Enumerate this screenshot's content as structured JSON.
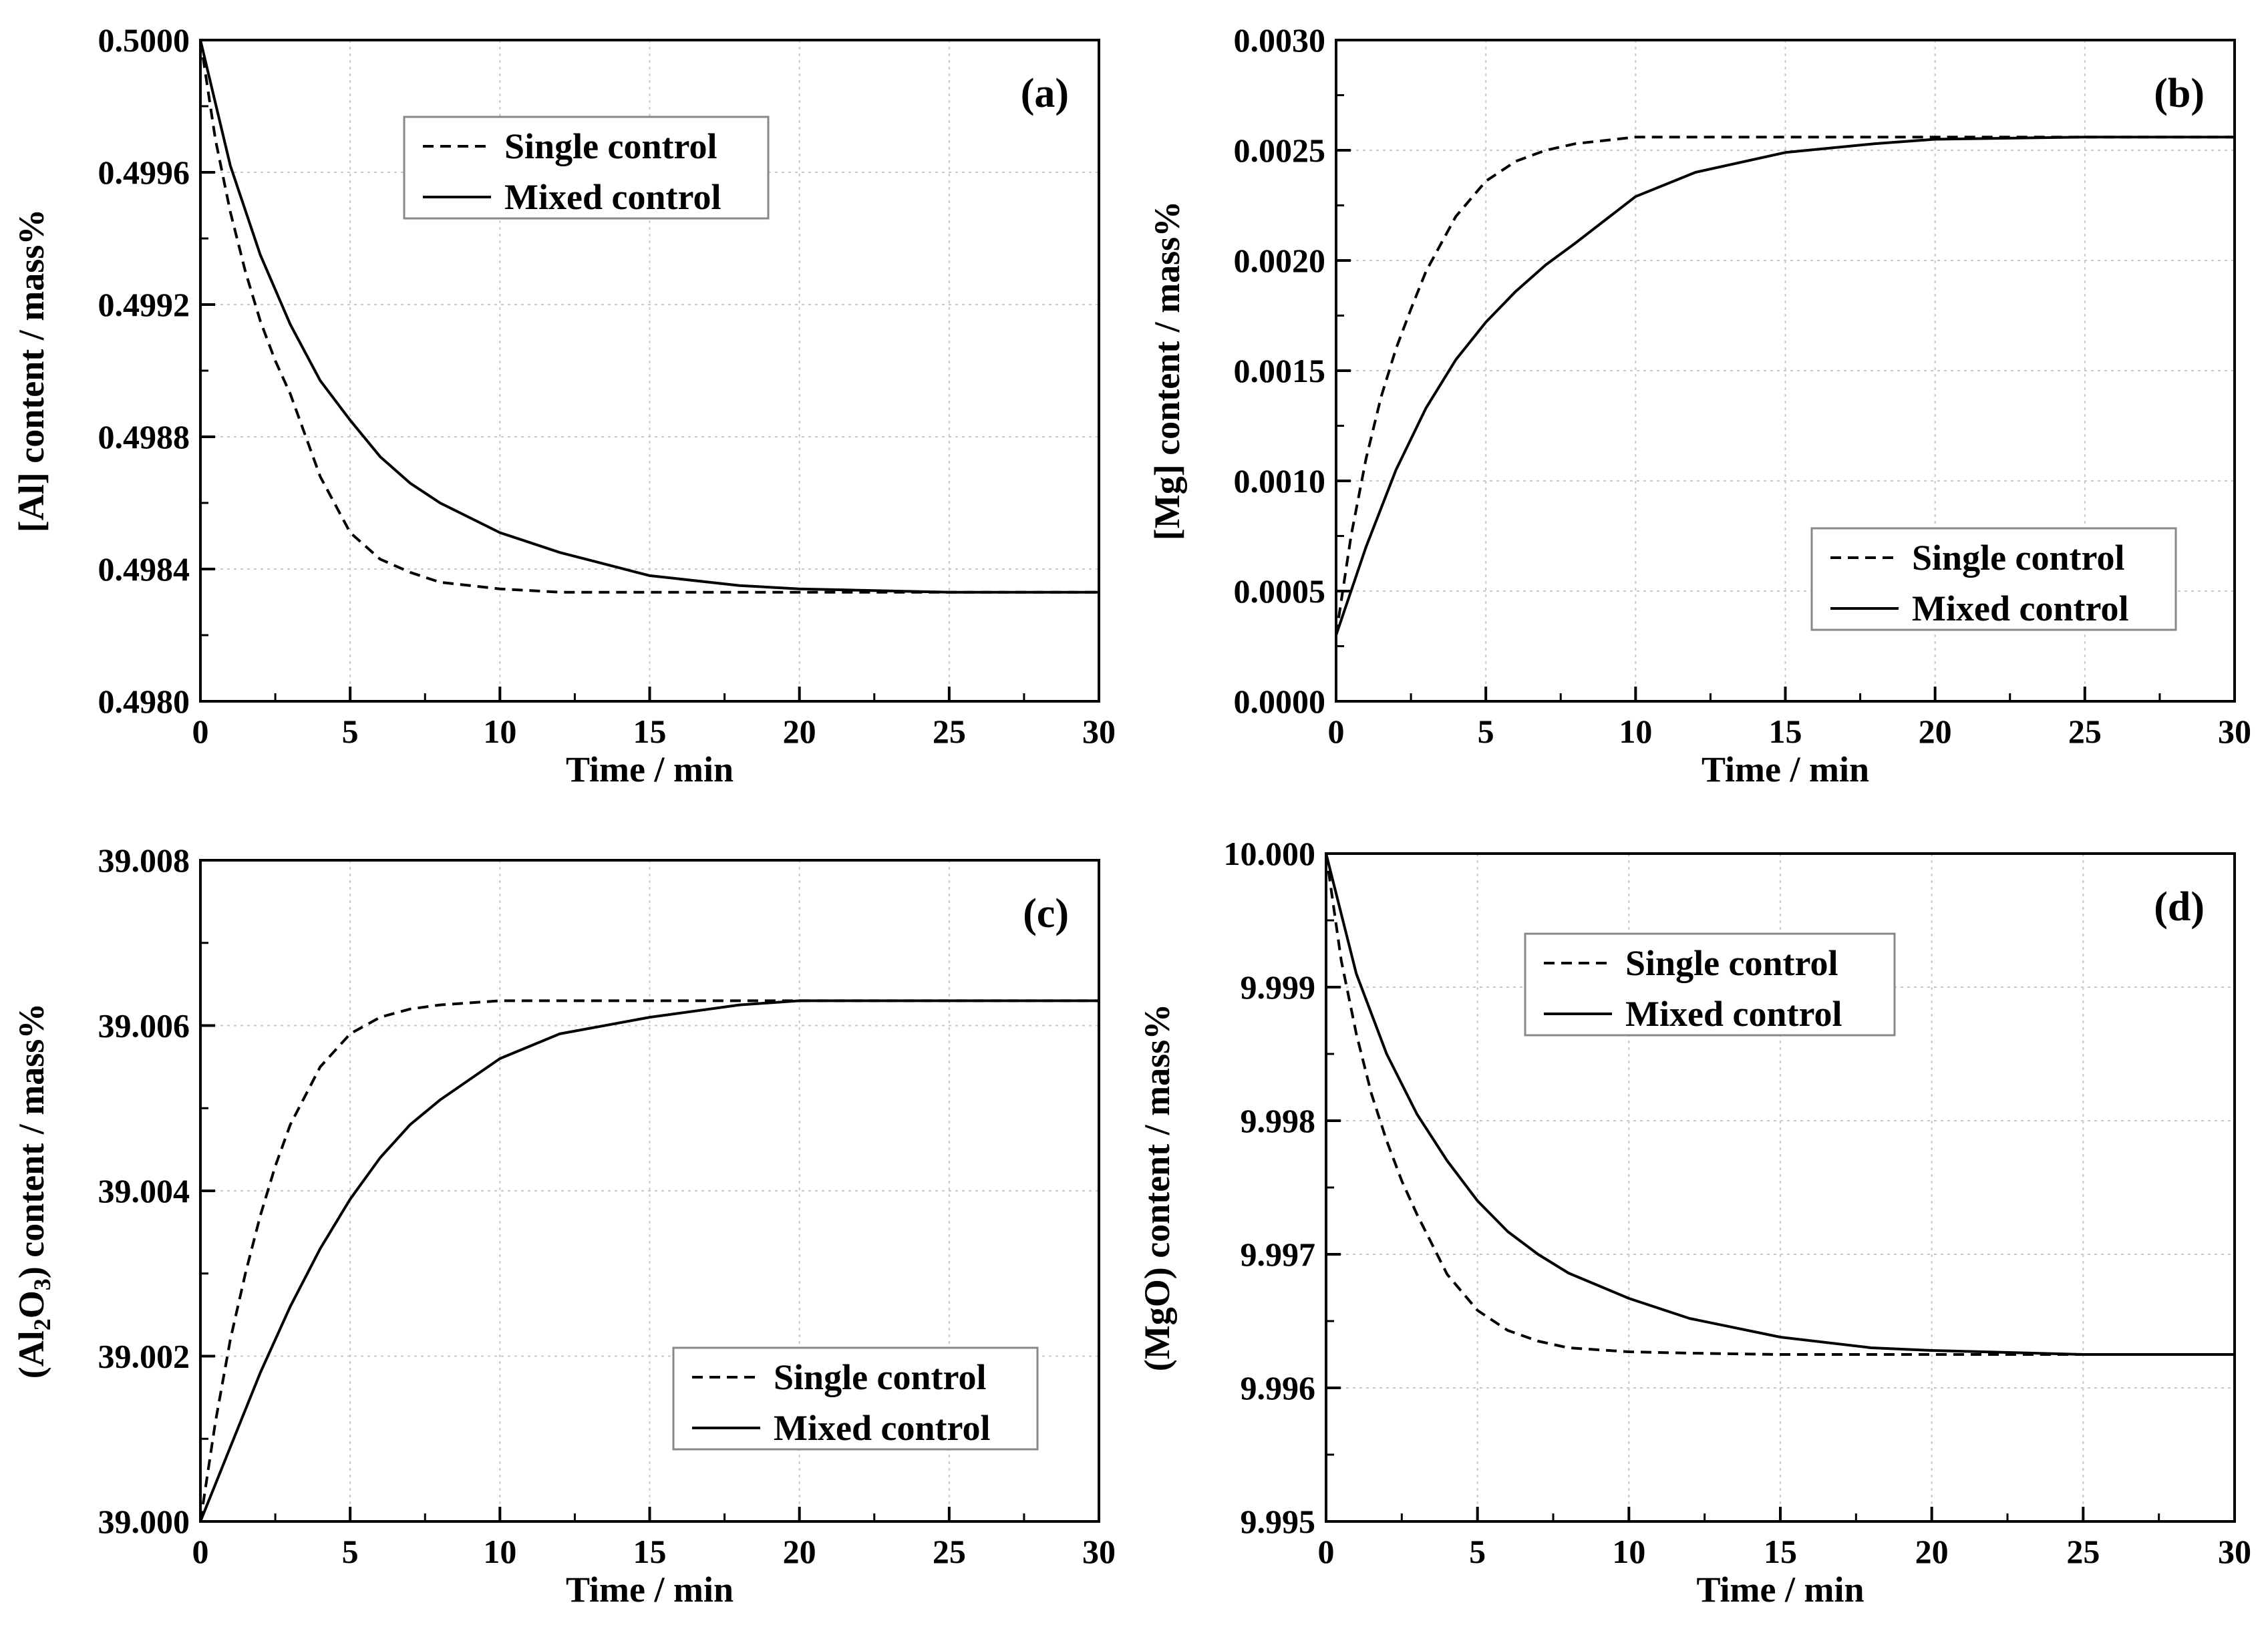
{
  "figure": {
    "background": "#ffffff",
    "line_color": "#000000",
    "grid_color": "#c8c8c8"
  },
  "chart_data": [
    {
      "type": "line",
      "panel_label": "(a)",
      "xlabel": "Time / min",
      "ylabel": "[Al] content / mass%",
      "xlim": [
        0,
        30
      ],
      "ylim": [
        0.498,
        0.5
      ],
      "x_ticks": [
        "0",
        "5",
        "10",
        "15",
        "20",
        "25",
        "30"
      ],
      "y_ticks": [
        "0.4980",
        "0.4984",
        "0.4988",
        "0.4992",
        "0.4996",
        "0.5000"
      ],
      "legend_position": "top-center",
      "series": [
        {
          "name": "Single control",
          "style": "dashed",
          "x": [
            0,
            0.5,
            1,
            1.5,
            2,
            2.5,
            3,
            4,
            5,
            6,
            7,
            8,
            10,
            12,
            15,
            20,
            25,
            30
          ],
          "y": [
            0.5,
            0.4997,
            0.49948,
            0.4993,
            0.49915,
            0.49903,
            0.49893,
            0.49868,
            0.49851,
            0.49843,
            0.49839,
            0.49836,
            0.49834,
            0.49833,
            0.49833,
            0.49833,
            0.49833,
            0.49833
          ]
        },
        {
          "name": "Mixed control",
          "style": "solid",
          "x": [
            0,
            1,
            2,
            3,
            4,
            5,
            6,
            7,
            8,
            10,
            12,
            15,
            18,
            20,
            25,
            30
          ],
          "y": [
            0.5,
            0.49962,
            0.49935,
            0.49914,
            0.49897,
            0.49885,
            0.49874,
            0.49866,
            0.4986,
            0.49851,
            0.49845,
            0.49838,
            0.49835,
            0.49834,
            0.49833,
            0.49833
          ]
        }
      ]
    },
    {
      "type": "line",
      "panel_label": "(b)",
      "xlabel": "Time / min",
      "ylabel": "[Mg] content / mass%",
      "xlim": [
        0,
        30
      ],
      "ylim": [
        0,
        0.003
      ],
      "x_ticks": [
        "0",
        "5",
        "10",
        "15",
        "20",
        "25",
        "30"
      ],
      "y_ticks": [
        "0.0000",
        "0.0005",
        "0.0010",
        "0.0015",
        "0.0020",
        "0.0025",
        "0.0030"
      ],
      "legend_position": "bottom-right",
      "series": [
        {
          "name": "Single control",
          "style": "dashed",
          "x": [
            0,
            0.5,
            1,
            1.5,
            2,
            2.5,
            3,
            4,
            5,
            6,
            7,
            8,
            10,
            12,
            15,
            20,
            25,
            30
          ],
          "y": [
            0.0003,
            0.00075,
            0.0011,
            0.00138,
            0.0016,
            0.00178,
            0.00195,
            0.0022,
            0.00236,
            0.00245,
            0.0025,
            0.00253,
            0.00256,
            0.00256,
            0.00256,
            0.00256,
            0.00256,
            0.00256
          ]
        },
        {
          "name": "Mixed control",
          "style": "solid",
          "x": [
            0,
            1,
            2,
            3,
            4,
            5,
            6,
            7,
            8,
            10,
            12,
            15,
            18,
            20,
            25,
            30
          ],
          "y": [
            0.0003,
            0.0007,
            0.00105,
            0.00133,
            0.00155,
            0.00172,
            0.00186,
            0.00198,
            0.00208,
            0.00229,
            0.0024,
            0.00249,
            0.00253,
            0.00255,
            0.00256,
            0.00256
          ]
        }
      ]
    },
    {
      "type": "line",
      "panel_label": "(c)",
      "xlabel": "Time / min",
      "ylabel": "(Al2O3) content / mass%",
      "ylabel_parts": [
        "(Al",
        "2",
        "O",
        "3",
        ") content / mass%"
      ],
      "xlim": [
        0,
        30
      ],
      "ylim": [
        39.0,
        39.008
      ],
      "x_ticks": [
        "0",
        "5",
        "10",
        "15",
        "20",
        "25",
        "30"
      ],
      "y_ticks": [
        "39.000",
        "39.002",
        "39.004",
        "39.006",
        "39.008"
      ],
      "legend_position": "bottom-right",
      "series": [
        {
          "name": "Single control",
          "style": "dashed",
          "x": [
            0,
            0.5,
            1,
            1.5,
            2,
            2.5,
            3,
            4,
            5,
            6,
            7,
            8,
            10,
            12,
            15,
            20,
            25,
            30
          ],
          "y": [
            39.0,
            39.0012,
            39.0022,
            39.003,
            39.0037,
            39.0043,
            39.0048,
            39.0055,
            39.0059,
            39.0061,
            39.0062,
            39.00625,
            39.0063,
            39.0063,
            39.0063,
            39.0063,
            39.0063,
            39.0063
          ]
        },
        {
          "name": "Mixed control",
          "style": "solid",
          "x": [
            0,
            1,
            2,
            3,
            4,
            5,
            6,
            7,
            8,
            10,
            12,
            15,
            18,
            20,
            25,
            30
          ],
          "y": [
            39.0,
            39.0009,
            39.0018,
            39.0026,
            39.0033,
            39.0039,
            39.0044,
            39.0048,
            39.0051,
            39.0056,
            39.0059,
            39.0061,
            39.00625,
            39.0063,
            39.0063,
            39.0063
          ]
        }
      ]
    },
    {
      "type": "line",
      "panel_label": "(d)",
      "xlabel": "Time / min",
      "ylabel": "(MgO) content / mass%",
      "xlim": [
        0,
        30
      ],
      "ylim": [
        9.995,
        10.0
      ],
      "x_ticks": [
        "0",
        "5",
        "10",
        "15",
        "20",
        "25",
        "30"
      ],
      "y_ticks": [
        "9.995",
        "9.996",
        "9.997",
        "9.998",
        "9.999",
        "10.000"
      ],
      "legend_position": "top-center",
      "series": [
        {
          "name": "Single control",
          "style": "dashed",
          "x": [
            0,
            0.5,
            1,
            1.5,
            2,
            2.5,
            3,
            4,
            5,
            6,
            7,
            8,
            10,
            12,
            15,
            20,
            25,
            30
          ],
          "y": [
            10.0,
            9.9992,
            9.99865,
            9.9982,
            9.99785,
            9.99755,
            9.9973,
            9.99685,
            9.99658,
            9.99643,
            9.99635,
            9.9963,
            9.99627,
            9.99626,
            9.99625,
            9.99625,
            9.99625,
            9.99625
          ]
        },
        {
          "name": "Mixed control",
          "style": "solid",
          "x": [
            0,
            1,
            2,
            3,
            4,
            5,
            6,
            7,
            8,
            10,
            12,
            15,
            18,
            20,
            25,
            30
          ],
          "y": [
            10.0,
            9.9991,
            9.9985,
            9.99805,
            9.9977,
            9.9974,
            9.99717,
            9.997,
            9.99686,
            9.99667,
            9.99652,
            9.99638,
            9.9963,
            9.99628,
            9.99625,
            9.99625
          ]
        }
      ]
    }
  ]
}
